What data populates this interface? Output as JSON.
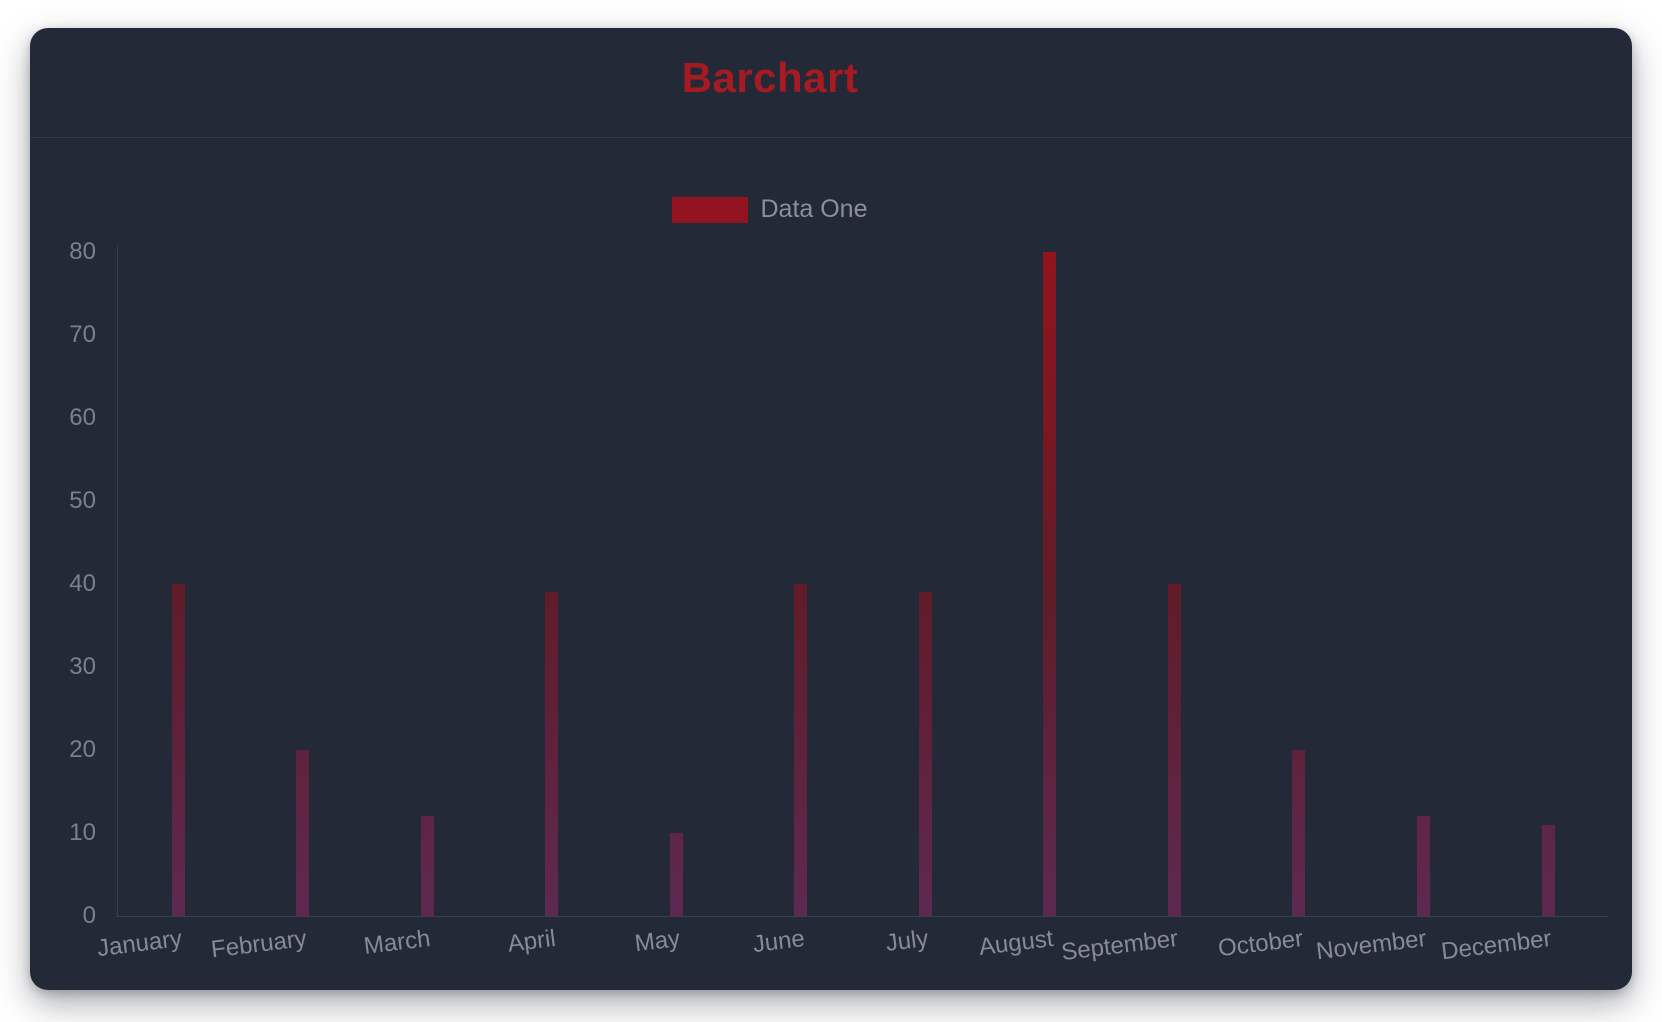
{
  "title": "Barchart",
  "legend": {
    "label": "Data One",
    "swatch_color": "#911420"
  },
  "chart_data": {
    "type": "bar",
    "title": "Barchart",
    "categories": [
      "January",
      "February",
      "March",
      "April",
      "May",
      "June",
      "July",
      "August",
      "September",
      "October",
      "November",
      "December"
    ],
    "series": [
      {
        "name": "Data One",
        "values": [
          40,
          20,
          12,
          39,
          10,
          40,
          39,
          80,
          40,
          20,
          12,
          11
        ]
      }
    ],
    "xlabel": "",
    "ylabel": "",
    "ylim": [
      0,
      80
    ],
    "yticks": [
      0,
      10,
      20,
      30,
      40,
      50,
      60,
      70,
      80
    ],
    "grid": false,
    "legend_position": "top-center",
    "bar_gradient_top_to_bottom": [
      "#93131e",
      "#601c28",
      "#5e2951"
    ]
  },
  "colors": {
    "page_bg": "#ffffff",
    "card_bg": "#232936",
    "title_text": "#a51b21",
    "y_tick_text": "#7b818b",
    "x_label_text": "#868b94",
    "legend_text": "#8b9099",
    "axis_line": "rgba(255,255,255,0.10)"
  }
}
